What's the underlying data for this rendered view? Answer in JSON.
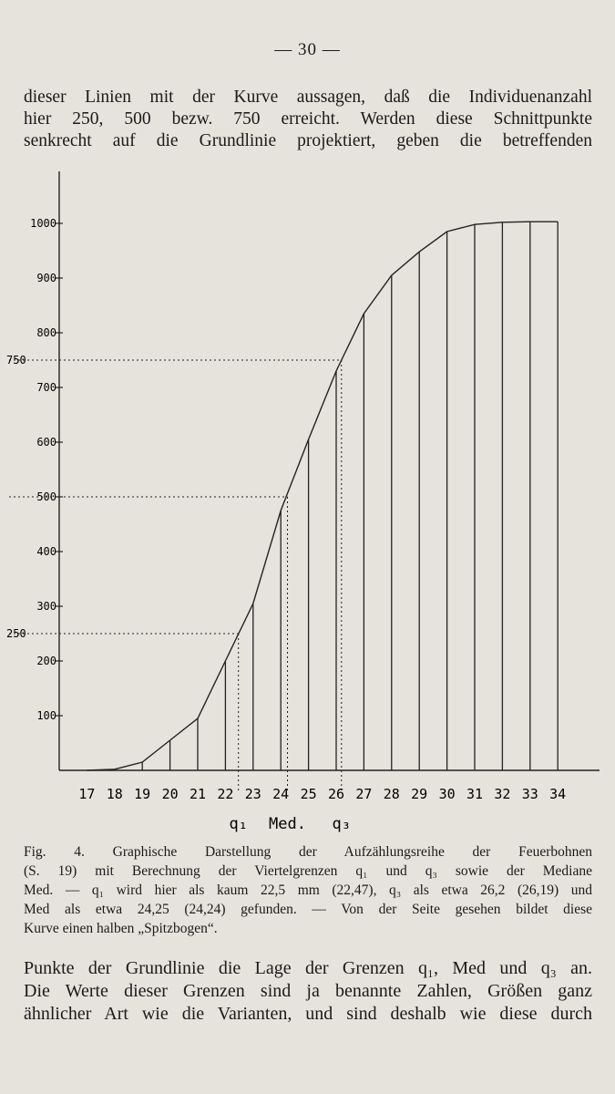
{
  "page": {
    "number": "— 30 —"
  },
  "intro_lines": [
    "dieser Linien mit der Kurve aussagen, daß die Individuenanzahl",
    "hier 250, 500 bezw. 750 erreicht. Werden diese Schnittpunkte",
    "senkrecht auf die Grundlinie projektiert, geben die betreffenden"
  ],
  "chart_data": {
    "type": "line",
    "title": "",
    "xlabel": "",
    "ylabel": "",
    "x": [
      17,
      18,
      19,
      20,
      21,
      22,
      23,
      24,
      25,
      26,
      27,
      28,
      29,
      30,
      31,
      32,
      33,
      34
    ],
    "series": [
      {
        "values": [
          0,
          2,
          15,
          55,
          95,
          200,
          305,
          475,
          605,
          730,
          835,
          905,
          948,
          985,
          998,
          1002,
          1003,
          1003
        ]
      }
    ],
    "xlim": [
      16,
      35
    ],
    "ylim": [
      0,
      1050
    ],
    "y_ticks": [
      "100",
      "200",
      "300",
      "400",
      "500",
      "600",
      "700",
      "800",
      "900",
      "1000"
    ],
    "x_ticks": [
      "17",
      "18",
      "19",
      "20",
      "21",
      "22",
      "23",
      "24",
      "25",
      "26",
      "27",
      "28",
      "29",
      "30",
      "31",
      "32",
      "33",
      "34"
    ],
    "reference_levels": [
      {
        "label": "250",
        "y": 250,
        "x": 22.47
      },
      {
        "label": "500",
        "y": 500,
        "x": 24.24
      },
      {
        "label": "750",
        "y": 750,
        "x": 26.19
      }
    ],
    "outer_labels": [
      "750",
      "250"
    ],
    "marker_labels": [
      "q₁",
      "Med.",
      "q₃"
    ],
    "grid": false,
    "vertical_ordinates": true
  },
  "caption_lines": [
    "Fig. 4. Graphische Darstellung der Aufzählungsreihe der Feuerbohnen",
    "(S. 19) mit Berechnung der Viertelgrenzen q₁ und q₃ sowie der Mediane",
    "Med. — q₁ wird hier als kaum 22,5 mm (22,47), q₃ als etwa 26,2 (26,19) und",
    "Med als etwa 24,25 (24,24) gefunden. — Von der Seite gesehen bildet diese",
    "Kurve einen halben „Spitzbogen“."
  ],
  "outro_lines": [
    "Punkte der Grundlinie die Lage der Grenzen q₁, Med und q₃ an.",
    "Die Werte dieser Grenzen sind ja benannte Zahlen, Größen ganz",
    "ähnlicher Art wie die Varianten, und sind deshalb wie diese durch"
  ]
}
